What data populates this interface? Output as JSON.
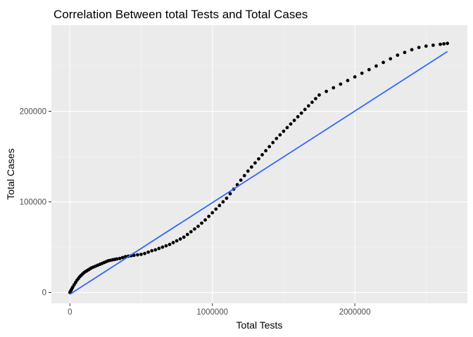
{
  "chart_data": {
    "type": "scatter",
    "title": "Correlation Between total Tests and Total Cases",
    "xlabel": "Total Tests",
    "ylabel": "Total Cases",
    "xlim": [
      -130000,
      2790000
    ],
    "ylim": [
      -12000,
      295000
    ],
    "x_ticks": [
      0,
      1000000,
      2000000
    ],
    "x_tick_labels": [
      "0",
      "1000000",
      "2000000"
    ],
    "y_ticks": [
      0,
      100000,
      200000
    ],
    "y_tick_labels": [
      "0",
      "100000",
      "200000"
    ],
    "grid": true,
    "legend": "none",
    "points": [
      [
        0,
        0
      ],
      [
        5000,
        1500
      ],
      [
        10000,
        3000
      ],
      [
        15000,
        4500
      ],
      [
        20000,
        6000
      ],
      [
        30000,
        8500
      ],
      [
        40000,
        11000
      ],
      [
        50000,
        13500
      ],
      [
        60000,
        15500
      ],
      [
        70000,
        17500
      ],
      [
        80000,
        19000
      ],
      [
        90000,
        20500
      ],
      [
        100000,
        22000
      ],
      [
        110000,
        23000
      ],
      [
        120000,
        24000
      ],
      [
        130000,
        25000
      ],
      [
        140000,
        26000
      ],
      [
        150000,
        27000
      ],
      [
        165000,
        28000
      ],
      [
        180000,
        29000
      ],
      [
        195000,
        30000
      ],
      [
        210000,
        31000
      ],
      [
        225000,
        32000
      ],
      [
        240000,
        33000
      ],
      [
        255000,
        34000
      ],
      [
        270000,
        35000
      ],
      [
        285000,
        35500
      ],
      [
        300000,
        36000
      ],
      [
        315000,
        36500
      ],
      [
        330000,
        37000
      ],
      [
        350000,
        37500
      ],
      [
        370000,
        38500
      ],
      [
        390000,
        39500
      ],
      [
        410000,
        40000
      ],
      [
        430000,
        40500
      ],
      [
        450000,
        41000
      ],
      [
        475000,
        41500
      ],
      [
        500000,
        42000
      ],
      [
        525000,
        43000
      ],
      [
        550000,
        44500
      ],
      [
        575000,
        46000
      ],
      [
        600000,
        47000
      ],
      [
        625000,
        48500
      ],
      [
        650000,
        50000
      ],
      [
        675000,
        51500
      ],
      [
        700000,
        53000
      ],
      [
        725000,
        55000
      ],
      [
        750000,
        57000
      ],
      [
        775000,
        59000
      ],
      [
        800000,
        61000
      ],
      [
        825000,
        64000
      ],
      [
        850000,
        67000
      ],
      [
        875000,
        70000
      ],
      [
        900000,
        73000
      ],
      [
        925000,
        76500
      ],
      [
        950000,
        80000
      ],
      [
        975000,
        84000
      ],
      [
        1000000,
        88000
      ],
      [
        1025000,
        92000
      ],
      [
        1050000,
        96000
      ],
      [
        1075000,
        100000
      ],
      [
        1100000,
        104000
      ],
      [
        1125000,
        109000
      ],
      [
        1150000,
        114000
      ],
      [
        1175000,
        119000
      ],
      [
        1200000,
        124000
      ],
      [
        1225000,
        129000
      ],
      [
        1250000,
        134000
      ],
      [
        1275000,
        138500
      ],
      [
        1300000,
        143000
      ],
      [
        1325000,
        147500
      ],
      [
        1350000,
        152000
      ],
      [
        1375000,
        156500
      ],
      [
        1400000,
        161000
      ],
      [
        1425000,
        165500
      ],
      [
        1450000,
        170000
      ],
      [
        1475000,
        174000
      ],
      [
        1500000,
        178000
      ],
      [
        1525000,
        182000
      ],
      [
        1550000,
        186000
      ],
      [
        1575000,
        190000
      ],
      [
        1600000,
        194000
      ],
      [
        1625000,
        198000
      ],
      [
        1650000,
        202000
      ],
      [
        1675000,
        206000
      ],
      [
        1700000,
        210000
      ],
      [
        1725000,
        214000
      ],
      [
        1750000,
        218000
      ],
      [
        1800000,
        222000
      ],
      [
        1850000,
        226000
      ],
      [
        1900000,
        230000
      ],
      [
        1950000,
        234000
      ],
      [
        2000000,
        238000
      ],
      [
        2050000,
        242000
      ],
      [
        2100000,
        246000
      ],
      [
        2150000,
        250000
      ],
      [
        2200000,
        254000
      ],
      [
        2250000,
        258000
      ],
      [
        2300000,
        262000
      ],
      [
        2350000,
        265000
      ],
      [
        2400000,
        268000
      ],
      [
        2450000,
        270500
      ],
      [
        2500000,
        272000
      ],
      [
        2550000,
        273000
      ],
      [
        2600000,
        274000
      ],
      [
        2625000,
        274500
      ],
      [
        2650000,
        275000
      ]
    ],
    "trend_line": {
      "x": [
        0,
        2650000
      ],
      "y": [
        -2000,
        266000
      ],
      "color": "#3366ff"
    },
    "colors": {
      "panel": "#ebebeb",
      "grid_major": "#ffffff",
      "grid_minor": "#f5f5f5",
      "point": "#000000",
      "tick": "#333333"
    }
  }
}
